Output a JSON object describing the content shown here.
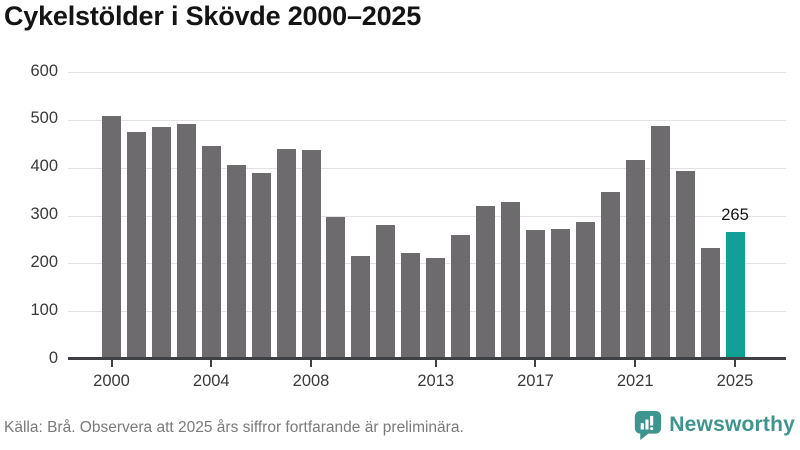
{
  "title": "Cykelstölder i Skövde 2000–2025",
  "footer": {
    "source_note": "Källa: Brå. Observera att 2025 års siffror fortfarande är preliminära.",
    "brand": "Newsworthy"
  },
  "colors": {
    "bar_default": "#6e6b6f",
    "bar_highlight": "#0fa196",
    "brand_teal": "#3e948e",
    "axis_line": "#3f4043",
    "gridline": "#e2e2e2",
    "axis_text": "#3a3a3a",
    "muted_text": "#7a7a7a",
    "title_text": "#141414"
  },
  "chart_data": {
    "type": "bar",
    "title": "Cykelstölder i Skövde 2000–2025",
    "categories": [
      2000,
      2001,
      2002,
      2003,
      2004,
      2005,
      2006,
      2007,
      2008,
      2009,
      2010,
      2011,
      2012,
      2013,
      2014,
      2015,
      2016,
      2017,
      2018,
      2019,
      2020,
      2021,
      2022,
      2023,
      2024,
      2025
    ],
    "values": [
      508,
      475,
      486,
      491,
      445,
      406,
      389,
      440,
      438,
      297,
      216,
      281,
      222,
      212,
      260,
      320,
      328,
      270,
      271,
      286,
      350,
      416,
      487,
      394,
      233,
      265
    ],
    "highlight_index": 25,
    "highlight_label": "265",
    "x_tick_labels": [
      "2000",
      "2004",
      "2008",
      "2013",
      "2017",
      "2021",
      "2025"
    ],
    "y_ticks": [
      0,
      100,
      200,
      300,
      400,
      500,
      600
    ],
    "ylim": [
      0,
      600
    ],
    "xlabel": "",
    "ylabel": "",
    "grid": "horizontal",
    "legend": "none"
  }
}
